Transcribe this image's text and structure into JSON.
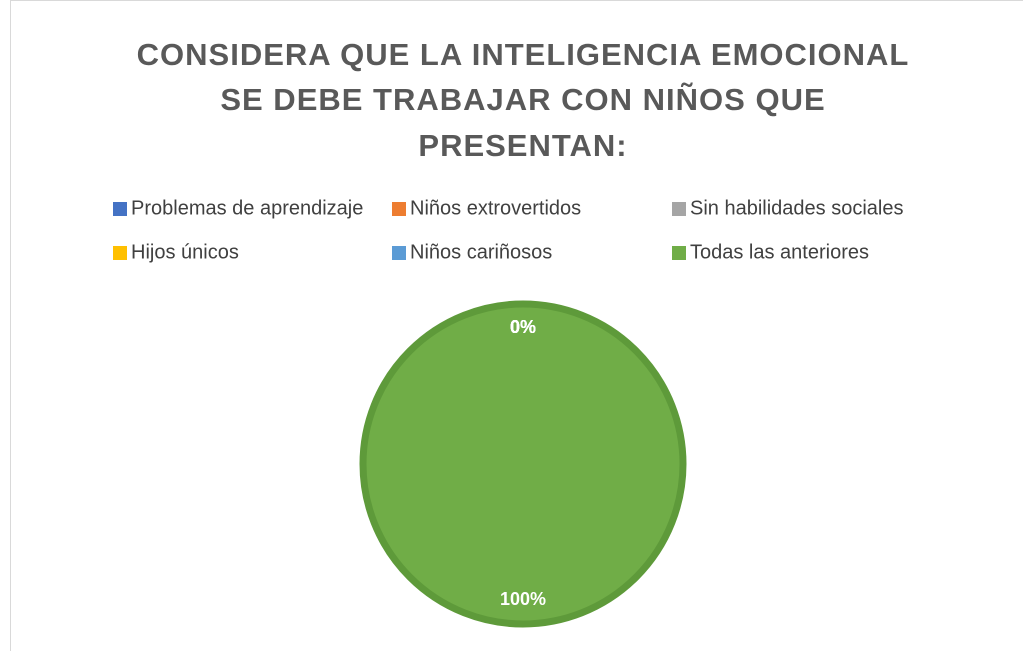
{
  "chart_data": {
    "type": "pie",
    "title": [
      "CONSIDERA QUE LA INTELIGENCIA EMOCIONAL",
      "SE DEBE TRABAJAR CON NIÑOS QUE",
      "PRESENTAN:"
    ],
    "categories": [
      "Problemas de aprendizaje",
      "Niños extrovertidos",
      "Sin habilidades sociales",
      "Hijos únicos",
      "Niños cariñosos",
      "Todas las anteriores"
    ],
    "values": [
      0,
      0,
      0,
      0,
      0,
      100
    ],
    "value_labels": [
      "0%",
      "0%",
      "0%",
      "0%",
      "0%",
      "100%"
    ],
    "colors": [
      "#4472c4",
      "#ed7d31",
      "#a5a5a5",
      "#ffc000",
      "#5b9bd5",
      "#70ad47"
    ],
    "legend": "top"
  }
}
